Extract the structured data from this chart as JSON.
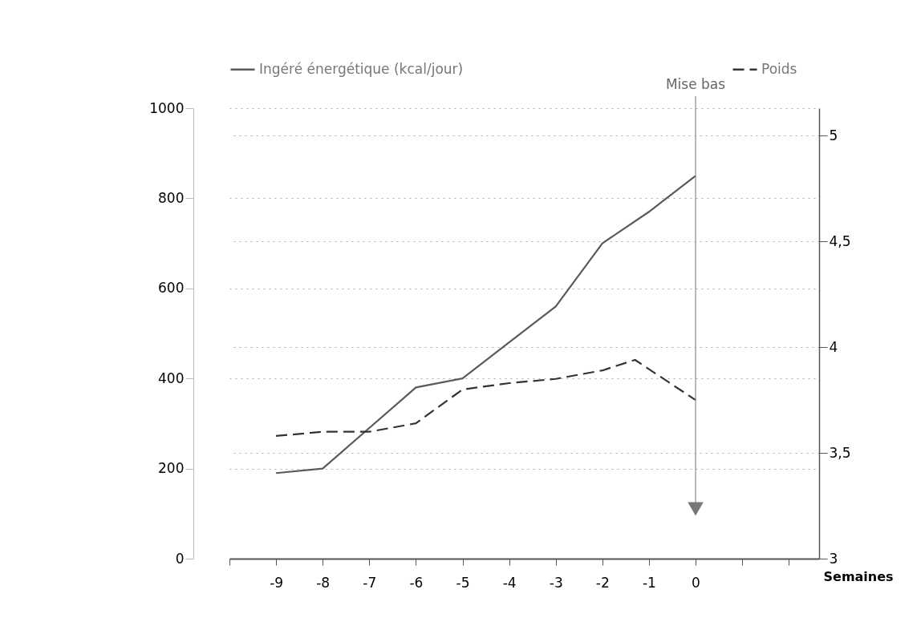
{
  "chart_data": {
    "type": "line",
    "x": [
      -9,
      -8,
      -7,
      -6,
      -5,
      -4,
      -3,
      -2,
      -1,
      0
    ],
    "xlim": [
      -10,
      2.65
    ],
    "xticks": [
      {
        "value": -10,
        "label": null
      },
      -9,
      -8,
      -7,
      -6,
      -5,
      -4,
      -3,
      -2,
      -1,
      0,
      {
        "value": 1,
        "label": null
      },
      {
        "value": 2,
        "label": null
      }
    ],
    "xlabel": "Semaines",
    "ylim": [
      0,
      1000
    ],
    "yticks": [
      0,
      200,
      400,
      600,
      800,
      1000
    ],
    "y2lim": [
      3,
      5.13
    ],
    "y2ticks": [
      3,
      {
        "value": 3.5,
        "label": "3,5"
      },
      4,
      {
        "value": 4.5,
        "label": "4,5"
      },
      5
    ],
    "grid": "y",
    "legend": "top",
    "series": [
      {
        "name": "Ingéré énergétique (kcal/jour)",
        "color": "#5a5a5a",
        "line_style": "solid",
        "values": [
          190,
          200,
          290,
          380,
          400,
          480,
          560,
          700,
          770,
          850
        ]
      },
      {
        "name": "Poids",
        "color": "#333333",
        "line_style": "dashed",
        "axis": "y2",
        "x": [
          -9,
          -8,
          -7,
          -6,
          -5,
          -4,
          -3,
          -2,
          -1.3,
          0
        ],
        "values": [
          3.58,
          3.6,
          3.6,
          3.64,
          3.8,
          3.83,
          3.85,
          3.89,
          3.94,
          3.75
        ]
      }
    ],
    "ref_lines": [
      {
        "axis": "x",
        "value": 0,
        "label": "Mise bas",
        "color": "#888888"
      }
    ]
  }
}
